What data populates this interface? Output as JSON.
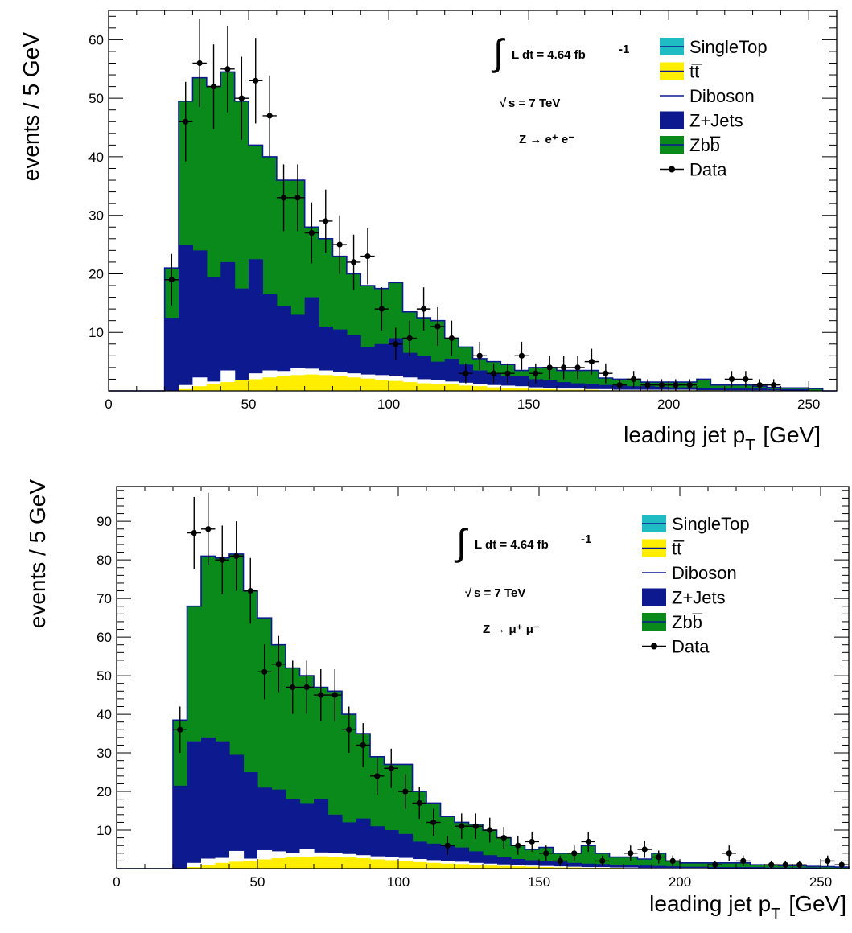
{
  "colors": {
    "singletop": "#1fbcc4",
    "ttbar": "#ffee00",
    "diboson": "#ffffff",
    "zjets": "#0d1a8f",
    "zbb": "#0b8a1c",
    "outline": "#0d1a8f",
    "data": "#000000"
  },
  "legend": {
    "singletop": "SingleTop",
    "ttbar": "tt̅",
    "diboson": "Diboson",
    "zjets": "Z+Jets",
    "zbb": "Zbb̅",
    "data": "Data"
  },
  "annotations": {
    "lumi_text": "L dt = 4.64 fb",
    "lumi_exp": "-1",
    "energy_text": "s = 7 TeV",
    "sqrt_sign": "√",
    "integral_sign": "∫"
  },
  "chart_data": [
    {
      "type": "area",
      "channel_label": "Z → e⁺ e⁻",
      "xlabel": "leading jet p",
      "xlabel_sub": "T",
      "xlabel_unit": "[GeV]",
      "ylabel": "events / 5 GeV",
      "xlim": [
        0,
        260
      ],
      "ylim": [
        0,
        65
      ],
      "xticks": [
        0,
        50,
        100,
        150,
        200,
        250
      ],
      "yticks": [
        10,
        20,
        30,
        40,
        50,
        60
      ],
      "bin_edges": [
        0,
        5,
        10,
        15,
        20,
        25,
        30,
        35,
        40,
        45,
        50,
        55,
        60,
        65,
        70,
        75,
        80,
        85,
        90,
        95,
        100,
        105,
        110,
        115,
        120,
        125,
        130,
        135,
        140,
        145,
        150,
        155,
        160,
        165,
        170,
        175,
        180,
        185,
        190,
        195,
        200,
        205,
        210,
        215,
        220,
        225,
        230,
        235,
        240,
        245,
        250,
        255,
        260
      ],
      "stack_ttbar": [
        0,
        0,
        0,
        0,
        0,
        0.3,
        0.8,
        1.2,
        1.5,
        1.8,
        2.0,
        2.3,
        2.5,
        2.7,
        2.8,
        2.7,
        2.5,
        2.3,
        2.1,
        1.9,
        1.7,
        1.5,
        1.3,
        1.2,
        1.1,
        0.9,
        0.8,
        0.6,
        0.5,
        0.4,
        0.3,
        0.3,
        0.2,
        0.2,
        0.2,
        0.1,
        0.1,
        0.1,
        0.1,
        0.1,
        0.1,
        0.1,
        0.1,
        0.1,
        0,
        0,
        0,
        0,
        0,
        0,
        0,
        0
      ],
      "stack_diboson": [
        0,
        0,
        0,
        0,
        0,
        1.0,
        2.3,
        1.6,
        3.5,
        1.7,
        3.0,
        3.5,
        3.4,
        3.9,
        3.8,
        3.5,
        3.2,
        3.0,
        2.8,
        2.7,
        2.6,
        2.3,
        2.0,
        1.8,
        1.6,
        1.4,
        1.2,
        1.0,
        0.9,
        0.8,
        0.6,
        0.5,
        0.4,
        0.4,
        0.3,
        0.3,
        0.2,
        0.2,
        0.2,
        0.2,
        0.2,
        0.2,
        0.1,
        0.1,
        0.1,
        0.1,
        0.1,
        0.1,
        0,
        0,
        0,
        0
      ],
      "stack_zjets": [
        0,
        0,
        0,
        0,
        12.5,
        25.0,
        24.0,
        19.5,
        22.0,
        17.5,
        22.5,
        16.5,
        14.5,
        13.0,
        16.0,
        11.0,
        10.5,
        9.5,
        7.5,
        8.0,
        9.0,
        6.5,
        6.0,
        5.0,
        5.5,
        4.5,
        3.5,
        3.0,
        2.5,
        2.5,
        2.0,
        1.8,
        1.5,
        1.3,
        1.2,
        1.0,
        0.9,
        0.8,
        0.8,
        0.7,
        0.6,
        0.6,
        0.5,
        0.5,
        0.4,
        0.4,
        0.4,
        0.3,
        0.3,
        0.3,
        0,
        0
      ],
      "stack_zbb": [
        0,
        0,
        0,
        0,
        21.0,
        49.5,
        53.5,
        52.0,
        54.5,
        49.5,
        42.0,
        40.0,
        36.0,
        36.0,
        28.0,
        26.0,
        23.0,
        20.0,
        18.0,
        17.5,
        18.5,
        13.5,
        12.5,
        12.0,
        9.0,
        7.5,
        5.5,
        5.0,
        4.5,
        3.5,
        4.0,
        4.0,
        3.5,
        3.5,
        3.5,
        2.2,
        2.0,
        2.0,
        1.5,
        1.5,
        1.5,
        1.5,
        2.0,
        1.0,
        1.0,
        1.0,
        0.8,
        0.6,
        0.5,
        0.5,
        0.4,
        0
      ],
      "data_points": [
        {
          "x": 22.5,
          "y": 19,
          "err": 4.4
        },
        {
          "x": 27.5,
          "y": 46,
          "err": 6.8
        },
        {
          "x": 32.5,
          "y": 56,
          "err": 7.5
        },
        {
          "x": 37.5,
          "y": 52,
          "err": 7.2
        },
        {
          "x": 42.5,
          "y": 55,
          "err": 7.4
        },
        {
          "x": 47.5,
          "y": 50,
          "err": 7.1
        },
        {
          "x": 52.5,
          "y": 53,
          "err": 7.3
        },
        {
          "x": 57.5,
          "y": 47,
          "err": 6.9
        },
        {
          "x": 62.5,
          "y": 33,
          "err": 5.7
        },
        {
          "x": 67.5,
          "y": 33,
          "err": 5.7
        },
        {
          "x": 72.5,
          "y": 27,
          "err": 5.2
        },
        {
          "x": 77.5,
          "y": 29,
          "err": 5.4
        },
        {
          "x": 82.5,
          "y": 25,
          "err": 5.0
        },
        {
          "x": 87.5,
          "y": 22,
          "err": 4.7
        },
        {
          "x": 92.5,
          "y": 23,
          "err": 4.8
        },
        {
          "x": 97.5,
          "y": 14,
          "err": 3.7
        },
        {
          "x": 102.5,
          "y": 8,
          "err": 2.8
        },
        {
          "x": 107.5,
          "y": 9,
          "err": 3.0
        },
        {
          "x": 112.5,
          "y": 14,
          "err": 3.7
        },
        {
          "x": 117.5,
          "y": 11,
          "err": 3.3
        },
        {
          "x": 122.5,
          "y": 9,
          "err": 3.0
        },
        {
          "x": 127.5,
          "y": 3,
          "err": 1.7
        },
        {
          "x": 132.5,
          "y": 6,
          "err": 2.4
        },
        {
          "x": 137.5,
          "y": 3,
          "err": 1.7
        },
        {
          "x": 142.5,
          "y": 3,
          "err": 1.7
        },
        {
          "x": 147.5,
          "y": 6,
          "err": 2.4
        },
        {
          "x": 152.5,
          "y": 3,
          "err": 1.7
        },
        {
          "x": 157.5,
          "y": 4,
          "err": 2.0
        },
        {
          "x": 162.5,
          "y": 4,
          "err": 2.0
        },
        {
          "x": 167.5,
          "y": 4,
          "err": 2.0
        },
        {
          "x": 172.5,
          "y": 5,
          "err": 2.2
        },
        {
          "x": 177.5,
          "y": 3,
          "err": 1.7
        },
        {
          "x": 182.5,
          "y": 1,
          "err": 1.0
        },
        {
          "x": 187.5,
          "y": 2,
          "err": 1.4
        },
        {
          "x": 192.5,
          "y": 1,
          "err": 1.0
        },
        {
          "x": 197.5,
          "y": 1,
          "err": 1.0
        },
        {
          "x": 202.5,
          "y": 1,
          "err": 1.0
        },
        {
          "x": 207.5,
          "y": 1,
          "err": 1.0
        },
        {
          "x": 222.5,
          "y": 2,
          "err": 1.4
        },
        {
          "x": 227.5,
          "y": 2,
          "err": 1.4
        },
        {
          "x": 232.5,
          "y": 1,
          "err": 1.0
        },
        {
          "x": 237.5,
          "y": 1,
          "err": 1.0
        }
      ]
    },
    {
      "type": "area",
      "channel_label": "Z → μ⁺ μ⁻",
      "xlabel": "leading jet p",
      "xlabel_sub": "T",
      "xlabel_unit": "[GeV]",
      "ylabel": "events / 5 GeV",
      "xlim": [
        0,
        260
      ],
      "ylim": [
        0,
        99
      ],
      "xticks": [
        0,
        50,
        100,
        150,
        200,
        250
      ],
      "yticks": [
        10,
        20,
        30,
        40,
        50,
        60,
        70,
        80,
        90
      ],
      "bin_edges": [
        0,
        5,
        10,
        15,
        20,
        25,
        30,
        35,
        40,
        45,
        50,
        55,
        60,
        65,
        70,
        75,
        80,
        85,
        90,
        95,
        100,
        105,
        110,
        115,
        120,
        125,
        130,
        135,
        140,
        145,
        150,
        155,
        160,
        165,
        170,
        175,
        180,
        185,
        190,
        195,
        200,
        205,
        210,
        215,
        220,
        225,
        230,
        235,
        240,
        245,
        250,
        255,
        260
      ],
      "stack_ttbar": [
        0,
        0,
        0,
        0,
        0,
        0.4,
        1.0,
        1.5,
        1.8,
        2.1,
        2.4,
        2.7,
        2.9,
        3.1,
        3.2,
        3.1,
        2.9,
        2.7,
        2.4,
        2.2,
        2.0,
        1.7,
        1.5,
        1.3,
        1.2,
        1.0,
        0.8,
        0.7,
        0.6,
        0.5,
        0.4,
        0.3,
        0.3,
        0.2,
        0.2,
        0.2,
        0.1,
        0.1,
        0.1,
        0.1,
        0.1,
        0.1,
        0.1,
        0.1,
        0,
        0,
        0,
        0,
        0,
        0,
        0,
        0
      ],
      "stack_diboson": [
        0,
        0,
        0,
        0,
        0,
        1.5,
        2.6,
        2.8,
        4.6,
        2.6,
        4.8,
        4.5,
        4.0,
        5.0,
        4.2,
        4.1,
        3.8,
        3.5,
        3.2,
        3.0,
        2.8,
        2.5,
        2.2,
        2.0,
        1.8,
        1.5,
        1.3,
        1.1,
        1.0,
        0.8,
        0.7,
        0.6,
        0.5,
        0.4,
        0.4,
        0.3,
        0.3,
        0.2,
        0.2,
        0.2,
        0.2,
        0.2,
        0.1,
        0.1,
        0.1,
        0.1,
        0.1,
        0.1,
        0,
        0,
        0,
        0
      ],
      "stack_zjets": [
        0,
        0,
        0,
        0,
        21.5,
        33.0,
        34.0,
        33.0,
        29.5,
        25.0,
        21.0,
        20.5,
        18.0,
        17.0,
        18.0,
        14.0,
        12.0,
        13.0,
        11.0,
        10.0,
        9.0,
        7.0,
        6.5,
        6.0,
        5.5,
        4.5,
        3.5,
        3.0,
        2.5,
        2.2,
        2.0,
        1.8,
        1.5,
        1.3,
        1.2,
        1.0,
        0.9,
        0.8,
        0.7,
        0.6,
        0.5,
        0.5,
        0.4,
        0.4,
        0.4,
        0.4,
        0.3,
        0.3,
        0.3,
        0.3,
        0,
        0
      ],
      "stack_zbb": [
        0,
        0,
        0,
        0,
        38.5,
        68.0,
        81.0,
        80.5,
        81.5,
        72.0,
        65.0,
        58.0,
        52.0,
        50.0,
        47.0,
        46.0,
        40.0,
        35.0,
        29.0,
        27.0,
        27.0,
        20.0,
        17.0,
        13.5,
        12.0,
        11.5,
        10.0,
        8.0,
        6.0,
        5.0,
        5.5,
        4.0,
        4.0,
        6.0,
        4.0,
        3.0,
        3.0,
        2.5,
        4.0,
        2.0,
        1.5,
        1.5,
        1.5,
        1.5,
        1.5,
        1.0,
        1.0,
        0.8,
        0.8,
        0.6,
        0.5,
        0.4
      ],
      "data_points": [
        {
          "x": 22.5,
          "y": 36,
          "err": 6.0
        },
        {
          "x": 27.5,
          "y": 87,
          "err": 9.3
        },
        {
          "x": 32.5,
          "y": 88,
          "err": 9.4
        },
        {
          "x": 37.5,
          "y": 80,
          "err": 8.9
        },
        {
          "x": 42.5,
          "y": 81,
          "err": 9.0
        },
        {
          "x": 47.5,
          "y": 72,
          "err": 8.5
        },
        {
          "x": 52.5,
          "y": 51,
          "err": 7.1
        },
        {
          "x": 57.5,
          "y": 53,
          "err": 7.3
        },
        {
          "x": 62.5,
          "y": 47,
          "err": 6.9
        },
        {
          "x": 67.5,
          "y": 47,
          "err": 6.9
        },
        {
          "x": 72.5,
          "y": 45,
          "err": 6.7
        },
        {
          "x": 77.5,
          "y": 45,
          "err": 6.7
        },
        {
          "x": 82.5,
          "y": 36,
          "err": 6.0
        },
        {
          "x": 87.5,
          "y": 32,
          "err": 5.7
        },
        {
          "x": 92.5,
          "y": 24,
          "err": 4.9
        },
        {
          "x": 97.5,
          "y": 26,
          "err": 5.1
        },
        {
          "x": 102.5,
          "y": 20,
          "err": 4.5
        },
        {
          "x": 107.5,
          "y": 17,
          "err": 4.1
        },
        {
          "x": 112.5,
          "y": 12,
          "err": 3.5
        },
        {
          "x": 117.5,
          "y": 6,
          "err": 2.4
        },
        {
          "x": 122.5,
          "y": 11,
          "err": 3.3
        },
        {
          "x": 127.5,
          "y": 11,
          "err": 3.3
        },
        {
          "x": 132.5,
          "y": 10,
          "err": 3.2
        },
        {
          "x": 137.5,
          "y": 8,
          "err": 2.8
        },
        {
          "x": 142.5,
          "y": 6,
          "err": 2.4
        },
        {
          "x": 147.5,
          "y": 7,
          "err": 2.6
        },
        {
          "x": 152.5,
          "y": 4,
          "err": 2.0
        },
        {
          "x": 157.5,
          "y": 2,
          "err": 1.4
        },
        {
          "x": 162.5,
          "y": 4,
          "err": 2.0
        },
        {
          "x": 167.5,
          "y": 7,
          "err": 2.6
        },
        {
          "x": 172.5,
          "y": 2,
          "err": 1.4
        },
        {
          "x": 182.5,
          "y": 4,
          "err": 2.0
        },
        {
          "x": 187.5,
          "y": 5,
          "err": 2.2
        },
        {
          "x": 192.5,
          "y": 3,
          "err": 1.7
        },
        {
          "x": 197.5,
          "y": 2,
          "err": 1.4
        },
        {
          "x": 212.5,
          "y": 1,
          "err": 1.0
        },
        {
          "x": 217.5,
          "y": 4,
          "err": 2.0
        },
        {
          "x": 222.5,
          "y": 2,
          "err": 1.4
        },
        {
          "x": 232.5,
          "y": 1,
          "err": 1.0
        },
        {
          "x": 237.5,
          "y": 1,
          "err": 1.0
        },
        {
          "x": 242.5,
          "y": 1,
          "err": 1.0
        },
        {
          "x": 252.5,
          "y": 2,
          "err": 1.4
        },
        {
          "x": 257.5,
          "y": 1,
          "err": 1.0
        }
      ]
    }
  ]
}
